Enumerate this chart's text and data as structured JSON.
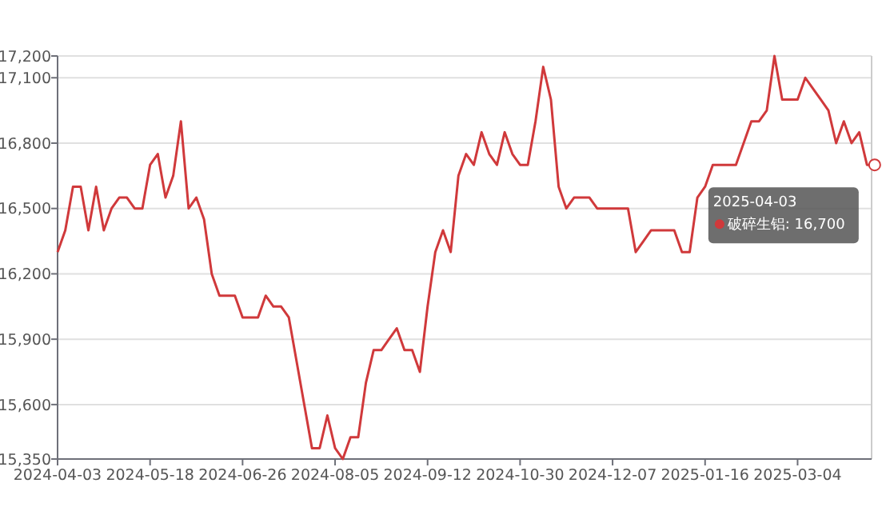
{
  "chart_data": {
    "type": "line",
    "categories": [
      "2024-04-03",
      null,
      null,
      null,
      null,
      null,
      null,
      null,
      null,
      null,
      null,
      null,
      "2024-05-18",
      null,
      null,
      null,
      null,
      null,
      null,
      null,
      null,
      null,
      null,
      null,
      "2024-06-26",
      null,
      null,
      null,
      null,
      null,
      null,
      null,
      null,
      null,
      null,
      null,
      "2024-08-05",
      null,
      null,
      null,
      null,
      null,
      null,
      null,
      null,
      null,
      null,
      null,
      "2024-09-12",
      null,
      null,
      null,
      null,
      null,
      null,
      null,
      null,
      null,
      null,
      null,
      "2024-10-30",
      null,
      null,
      null,
      null,
      null,
      null,
      null,
      null,
      null,
      null,
      null,
      "2024-12-07",
      null,
      null,
      null,
      null,
      null,
      null,
      null,
      null,
      null,
      null,
      null,
      "2025-01-16",
      null,
      null,
      null,
      null,
      null,
      null,
      null,
      null,
      null,
      null,
      null,
      "2025-03-04",
      null,
      null,
      null,
      null,
      null,
      null,
      null,
      null,
      null,
      null
    ],
    "series": [
      {
        "name": "破碎生铝",
        "color": "#d0393b",
        "values": [
          16300,
          16400,
          16600,
          16600,
          16400,
          16600,
          16400,
          16500,
          16550,
          16550,
          16500,
          16500,
          16700,
          16750,
          16550,
          16650,
          16900,
          16500,
          16550,
          16450,
          16200,
          16100,
          16100,
          16100,
          16000,
          16000,
          16000,
          16100,
          16050,
          16050,
          16000,
          15800,
          15600,
          15400,
          15400,
          15550,
          15400,
          15350,
          15450,
          15450,
          15700,
          15850,
          15850,
          15900,
          15950,
          15850,
          15850,
          15750,
          16050,
          16300,
          16400,
          16300,
          16650,
          16750,
          16700,
          16850,
          16750,
          16700,
          16850,
          16750,
          16700,
          16700,
          16900,
          17150,
          17000,
          16600,
          16500,
          16550,
          16550,
          16550,
          16500,
          16500,
          16500,
          16500,
          16500,
          16300,
          16350,
          16400,
          16400,
          16400,
          16400,
          16300,
          16300,
          16550,
          16600,
          16700,
          16700,
          16700,
          16700,
          16800,
          16900,
          16900,
          16950,
          17200,
          17000,
          17000,
          17000,
          17100,
          17050,
          17000,
          16950,
          16800,
          16900,
          16800,
          16850,
          16700,
          16700
        ]
      }
    ],
    "ylim": [
      15350,
      17200
    ],
    "yticks": [
      {
        "value": 15350,
        "label": "15,350"
      },
      {
        "value": 15600,
        "label": "15,600"
      },
      {
        "value": 15900,
        "label": "15,900"
      },
      {
        "value": 16200,
        "label": "16,200"
      },
      {
        "value": 16500,
        "label": "16,500"
      },
      {
        "value": 16800,
        "label": "16,800"
      },
      {
        "value": 17100,
        "label": "17,100"
      },
      {
        "value": 17200,
        "label": "17,200"
      }
    ],
    "grid": "y",
    "marker": "none",
    "legend": "right",
    "annotations": [
      "2025-04-03",
      ": 16,700"
    ]
  }
}
